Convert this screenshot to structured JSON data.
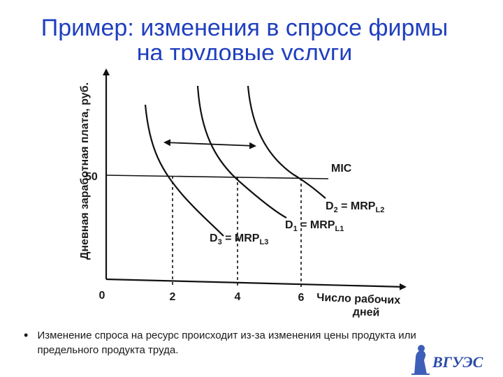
{
  "slide": {
    "title_line1": "Пример: изменения в спросе фирмы",
    "title_line2": "на трудовые услуги",
    "bullet": "Изменение спроса на ресурс происходит из-за изменения цены продукта или предельного продукта труда.",
    "logo_text": "ВГУЭС"
  },
  "chart_data": {
    "type": "line",
    "ylabel": "Дневная заработная плата, руб.",
    "xlabel_line1": "Число рабочих",
    "xlabel_line2": "дней",
    "origin_label": "0",
    "x_ticks": [
      {
        "value": 2,
        "label": "2"
      },
      {
        "value": 4,
        "label": "4"
      },
      {
        "value": 6,
        "label": "6"
      }
    ],
    "y_ticks": [
      {
        "value": 50,
        "label": "50"
      }
    ],
    "wage_line": {
      "name": "MIC",
      "y": 50
    },
    "series": [
      {
        "key": "D3",
        "label_main": "D",
        "label_sub": "3",
        "label_rest": " = MRP",
        "label_sub2": "L3",
        "intersect_x": 2
      },
      {
        "key": "D1",
        "label_main": "D",
        "label_sub": "1",
        "label_rest": " = MRP",
        "label_sub2": "L1",
        "intersect_x": 4
      },
      {
        "key": "D2",
        "label_main": "D",
        "label_sub": "2",
        "label_rest": " = MRP",
        "label_sub2": "L2",
        "intersect_x": 6
      }
    ],
    "shift_arrow": "double-headed horizontal"
  }
}
